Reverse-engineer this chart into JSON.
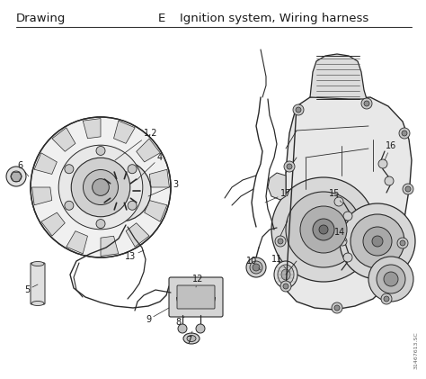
{
  "title_left": "Drawing",
  "title_center": "E",
  "title_right": "Ignition system, Wiring harness",
  "bg_color": "#ffffff",
  "line_color": "#000000",
  "text_color": "#1a1a1a",
  "figsize": [
    4.74,
    4.21
  ],
  "dpi": 100,
  "sketch_color": "#2a2a2a",
  "light_gray": "#c8c8c8",
  "mid_gray": "#a0a0a0",
  "dark_gray": "#505050",
  "ref_text": "31467613.SC",
  "ref_fontsize": 4.5,
  "header_fontsize": 9.5,
  "label_fontsize": 7.0
}
